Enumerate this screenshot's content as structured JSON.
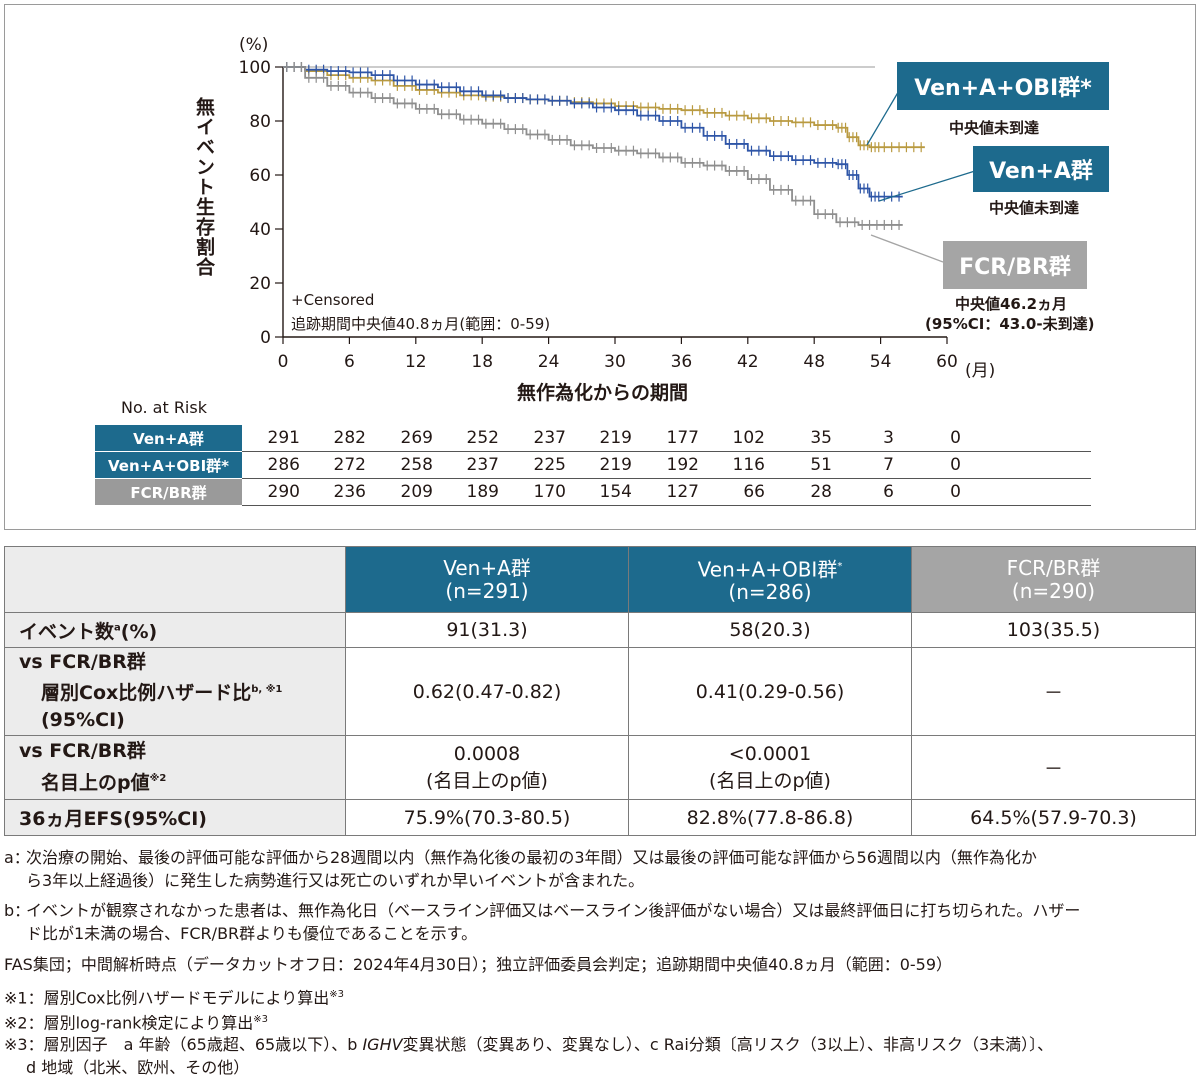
{
  "chart_data": {
    "type": "line",
    "y_unit": "(%)",
    "ylabel": "無イベント生存割合",
    "xlabel": "無作為化からの期間",
    "x_unit": "(月)",
    "xlim": [
      0,
      60
    ],
    "ylim": [
      0,
      100
    ],
    "x_ticks": [
      "0",
      "6",
      "12",
      "18",
      "24",
      "30",
      "36",
      "42",
      "48",
      "54",
      "60"
    ],
    "y_ticks": [
      "0",
      "20",
      "40",
      "60",
      "80",
      "100"
    ],
    "censor_note": "+Censored",
    "followup_note": "追跡期間中央値40.8ヵ月(範囲：0-59)",
    "series": [
      {
        "name": "Ven+A+OBI群*",
        "median": "中央値未到達",
        "color": "#b99a40",
        "x": [
          0,
          2,
          4,
          6,
          8,
          10,
          12,
          14,
          16,
          18,
          20,
          22,
          24,
          26,
          28,
          30,
          32,
          34,
          36,
          38,
          40,
          42,
          44,
          46,
          48,
          50,
          51,
          52,
          53,
          54,
          56,
          58
        ],
        "y": [
          100,
          98.5,
          97,
          96,
          95,
          93,
          91.5,
          90.5,
          89.5,
          89,
          88.5,
          88,
          87.5,
          87,
          86.5,
          85.5,
          85,
          84.5,
          84,
          83,
          82,
          81,
          80,
          79.5,
          78.5,
          77.5,
          74,
          71,
          70.3,
          70.3,
          70.3,
          70.3
        ]
      },
      {
        "name": "Ven+A群",
        "median": "中央値未到達",
        "color": "#2e55a7",
        "x": [
          0,
          2,
          4,
          6,
          8,
          10,
          12,
          14,
          16,
          18,
          20,
          22,
          24,
          26,
          28,
          30,
          32,
          34,
          36,
          38,
          40,
          42,
          44,
          46,
          48,
          50,
          51,
          52,
          53,
          54,
          56
        ],
        "y": [
          100,
          99,
          98.5,
          98,
          97,
          95,
          93.5,
          92.5,
          91,
          89.5,
          88.5,
          88,
          87.5,
          86.5,
          85,
          84,
          82,
          80,
          77.5,
          74.5,
          71.5,
          69,
          67,
          65.5,
          64.5,
          64,
          60,
          55,
          52,
          52,
          52
        ]
      },
      {
        "name": "FCR/BR群",
        "median": "中央値46.2ヵ月",
        "ci": "(95%CI：43.0-未到達)",
        "color": "#8e8e8e",
        "x": [
          0,
          2,
          4,
          6,
          8,
          10,
          12,
          14,
          16,
          18,
          20,
          22,
          24,
          26,
          28,
          30,
          32,
          34,
          36,
          38,
          40,
          42,
          44,
          46,
          48,
          50,
          52,
          54,
          56
        ],
        "y": [
          100,
          96,
          93,
          90.5,
          88.5,
          86.5,
          84.5,
          82.5,
          80.5,
          79,
          77,
          75,
          73,
          71,
          70,
          69,
          68,
          66.5,
          64.5,
          63.5,
          61.5,
          58.5,
          54.5,
          50.5,
          45.5,
          42.5,
          41.5,
          41.5,
          41.5
        ]
      }
    ]
  },
  "risk_table": {
    "title": "No. at Risk",
    "rows": [
      {
        "name": "Ven+A群",
        "color": "#1d6a8d",
        "values": [
          "291",
          "282",
          "269",
          "252",
          "237",
          "219",
          "177",
          "102",
          "35",
          "3",
          "0"
        ]
      },
      {
        "name": "Ven+A+OBI群*",
        "color": "#1d6a8d",
        "values": [
          "286",
          "272",
          "258",
          "237",
          "225",
          "219",
          "192",
          "116",
          "51",
          "7",
          "0"
        ]
      },
      {
        "name": "FCR/BR群",
        "color": "#9a9a9a",
        "values": [
          "290",
          "236",
          "209",
          "189",
          "170",
          "154",
          "127",
          "66",
          "28",
          "6",
          "0"
        ]
      }
    ]
  },
  "results_table": {
    "headers": [
      {
        "name": "Ven+A群",
        "n": "(n=291)",
        "color": "#1d6a8d"
      },
      {
        "name": "Ven+A+OBI群",
        "sup": "*",
        "n": "(n=286)",
        "color": "#1d6a8d"
      },
      {
        "name": "FCR/BR群",
        "n": "(n=290)",
        "color": "#a5a5a5"
      }
    ],
    "rows": [
      {
        "label": "イベント数",
        "label_sup": "a",
        "label_tail": "(%)",
        "cells": [
          "91(31.3)",
          "58(20.3)",
          "103(35.5)"
        ]
      },
      {
        "label": "vs FCR/BR群",
        "label2": "層別Cox比例ハザード比",
        "label2_sup": "b, ※1",
        "label3": "(95%CI)",
        "cells": [
          "0.62(0.47-0.82)",
          "0.41(0.29-0.56)",
          "－"
        ]
      },
      {
        "label": "vs FCR/BR群",
        "label2": "名目上のp値",
        "label2_sup": "※2",
        "cells": [
          "0.0008",
          "<0.0001",
          "－"
        ],
        "cells2": [
          "(名目上のp値)",
          "(名目上のp値)",
          ""
        ]
      },
      {
        "label": "36ヵ月EFS(95%CI)",
        "cells": [
          "75.9%(70.3-80.5)",
          "82.8%(77.8-86.8)",
          "64.5%(57.9-70.3)"
        ]
      }
    ]
  },
  "footnotes": {
    "a_key": "a：",
    "a_1": "次治療の開始、最後の評価可能な評価から28週間以内（無作為化後の最初の3年間）又は最後の評価可能な評価から56週間以内（無作為化か",
    "a_2": "ら3年以上経過後）に発生した病勢進行又は死亡のいずれか早いイベントが含まれた。",
    "b_key": "b：",
    "b_1": "イベントが観察されなかった患者は、無作為化日（ベースライン評価又はベースライン後評価がない場合）又は最終評価日に打ち切られた。ハザー",
    "b_2": "ド比が1未満の場合、FCR/BR群よりも優位であることを示す。",
    "fas": "FAS集団；中間解析時点（データカットオフ日：2024年4月30日）；独立評価委員会判定；追跡期間中央値40.8ヵ月（範囲：0-59）",
    "n1": "※1：層別Cox比例ハザードモデルにより算出",
    "n1_sup": "※3",
    "n2": "※2：層別log-rank検定により算出",
    "n2_sup": "※3",
    "n3_1a": "※3：層別因子　a 年齢（65歳超、65歳以下）、b ",
    "n3_1b": "IGHV",
    "n3_1c": "変異状態（変異あり、変異なし）、c Rai分類〔高リスク（3以上）、非高リスク（3未満）〕、",
    "n3_2": "d 地域（北米、欧州、その他）"
  }
}
